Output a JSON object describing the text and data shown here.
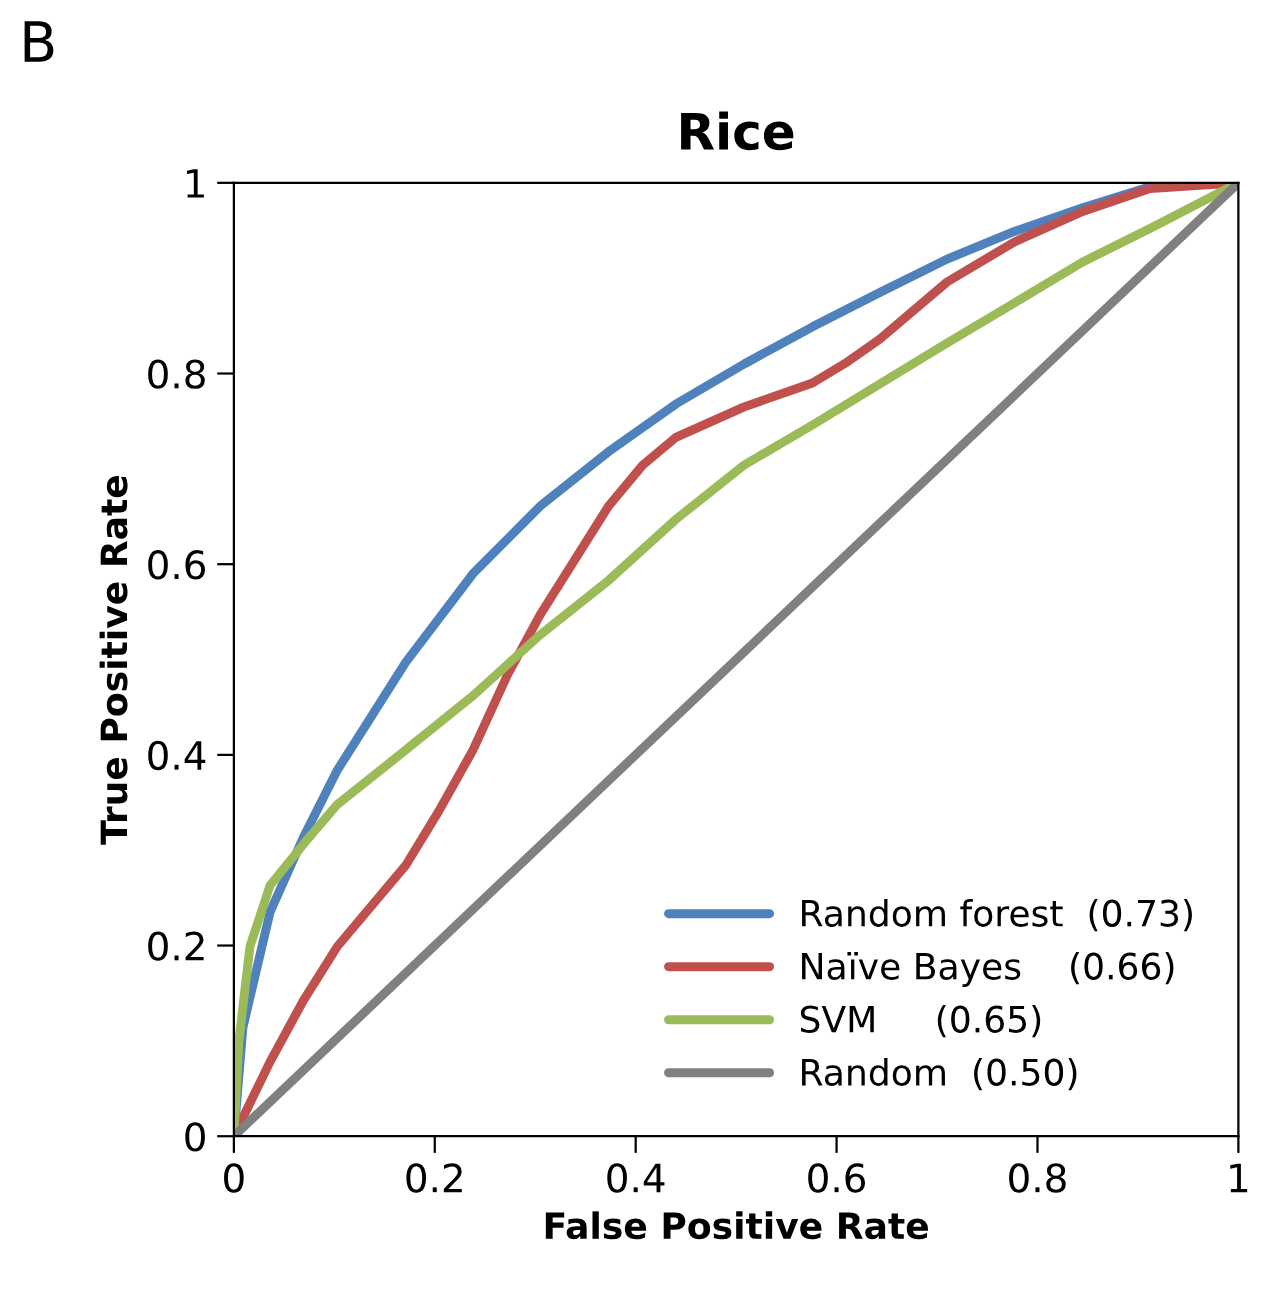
{
  "chart_data": {
    "type": "line",
    "title": "Rice",
    "xlabel": "False Positive Rate",
    "ylabel": "True Positive Rate",
    "annotations": [
      "B"
    ],
    "xlim": [
      0,
      1
    ],
    "ylim": [
      0,
      1
    ],
    "xticks": [
      0,
      0.2,
      0.4,
      0.6,
      0.8,
      1
    ],
    "yticks": [
      0,
      0.2,
      0.4,
      0.6,
      0.8,
      1
    ],
    "grid": false,
    "legend": "bottom right",
    "marker": "none",
    "line_style": "solid",
    "series": [
      {
        "name": "Random forest  (0.73)",
        "color": "#4f81bd",
        "x": [
          0,
          0.009,
          0.036,
          0.069,
          0.103,
          0.171,
          0.238,
          0.305,
          0.373,
          0.44,
          0.508,
          0.576,
          0.643,
          0.71,
          0.777,
          0.845,
          0.912,
          1
        ],
        "values": [
          0,
          0.114,
          0.235,
          0.313,
          0.384,
          0.497,
          0.59,
          0.661,
          0.718,
          0.768,
          0.81,
          0.849,
          0.885,
          0.92,
          0.949,
          0.974,
          0.996,
          1
        ]
      },
      {
        "name": "Naïve Bayes    (0.66)",
        "color": "#c0504d",
        "x": [
          0,
          0.036,
          0.069,
          0.103,
          0.171,
          0.204,
          0.238,
          0.272,
          0.305,
          0.339,
          0.373,
          0.407,
          0.44,
          0.508,
          0.576,
          0.609,
          0.643,
          0.71,
          0.777,
          0.845,
          0.912,
          1
        ],
        "values": [
          0,
          0.078,
          0.142,
          0.199,
          0.284,
          0.341,
          0.405,
          0.483,
          0.547,
          0.604,
          0.661,
          0.704,
          0.733,
          0.765,
          0.79,
          0.811,
          0.836,
          0.896,
          0.938,
          0.97,
          0.994,
          1
        ]
      },
      {
        "name": "SVM     (0.65)",
        "color": "#9bbb59",
        "x": [
          0,
          0.005,
          0.016,
          0.036,
          0.069,
          0.103,
          0.171,
          0.238,
          0.305,
          0.373,
          0.44,
          0.508,
          0.576,
          0.643,
          0.71,
          0.777,
          0.845,
          0.912,
          1
        ],
        "values": [
          0,
          0.1,
          0.199,
          0.263,
          0.306,
          0.348,
          0.405,
          0.462,
          0.526,
          0.583,
          0.647,
          0.704,
          0.746,
          0.789,
          0.832,
          0.874,
          0.917,
          0.952,
          1
        ]
      },
      {
        "name": "Random  (0.50)",
        "color": "#808080",
        "x": [
          0,
          1
        ],
        "values": [
          0,
          1
        ]
      }
    ]
  }
}
